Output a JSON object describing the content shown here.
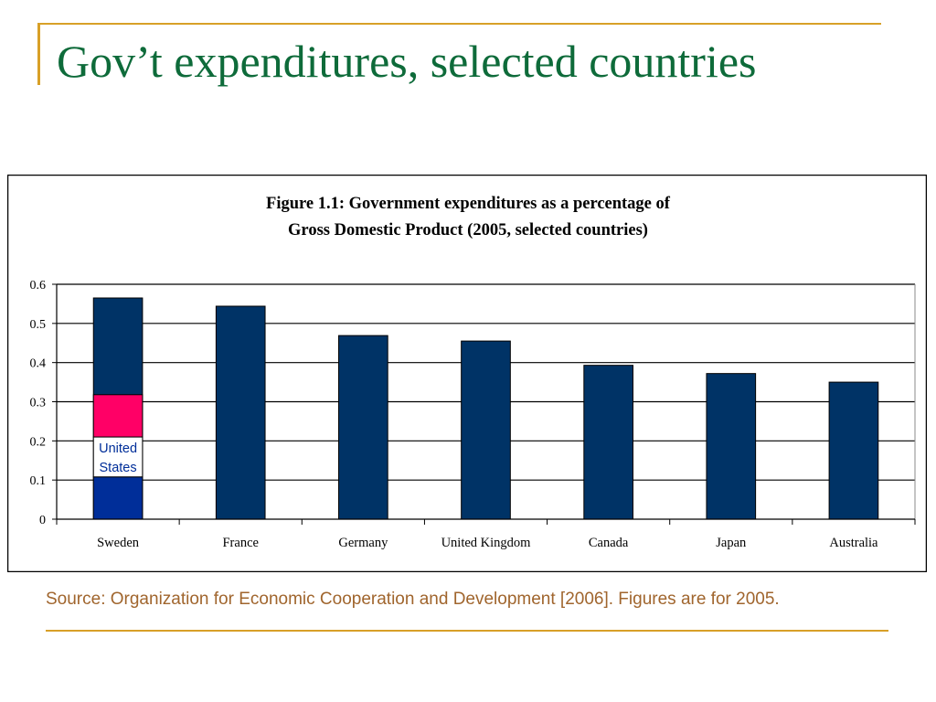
{
  "slide": {
    "title": "Gov’t expenditures, selected countries",
    "source": "Source: Organization for Economic Cooperation and Development [2006].  Figures are for 2005."
  },
  "colors": {
    "title": "#0e6b3a",
    "accent": "#d8a028",
    "source_text": "#a0652d",
    "bar": "#003366",
    "us_red": "#ff0066",
    "us_white": "#ffffff",
    "us_blue": "#002e99",
    "us_label": "#002e99"
  },
  "chart_data": {
    "type": "bar",
    "title_lines": [
      "Figure 1.1: Government expenditures as a percentage of",
      "Gross Domestic Product (2005, selected countries)"
    ],
    "categories": [
      "Sweden",
      "France",
      "Germany",
      "United Kingdom",
      "Canada",
      "Japan",
      "Australia"
    ],
    "values": [
      0.565,
      0.544,
      0.469,
      0.455,
      0.393,
      0.372,
      0.35
    ],
    "ylim": [
      0,
      0.6
    ],
    "yticks": [
      "0",
      "0.1",
      "0.2",
      "0.3",
      "0.4",
      "0.5",
      "0.6"
    ],
    "grid": true,
    "legend": "none",
    "inset": {
      "category": "Sweden",
      "label_lines": [
        "United",
        "States"
      ],
      "bands": [
        {
          "from": 0.0,
          "to": 0.108,
          "color": "blue"
        },
        {
          "from": 0.108,
          "to": 0.21,
          "color": "white"
        },
        {
          "from": 0.21,
          "to": 0.318,
          "color": "red"
        }
      ]
    }
  }
}
